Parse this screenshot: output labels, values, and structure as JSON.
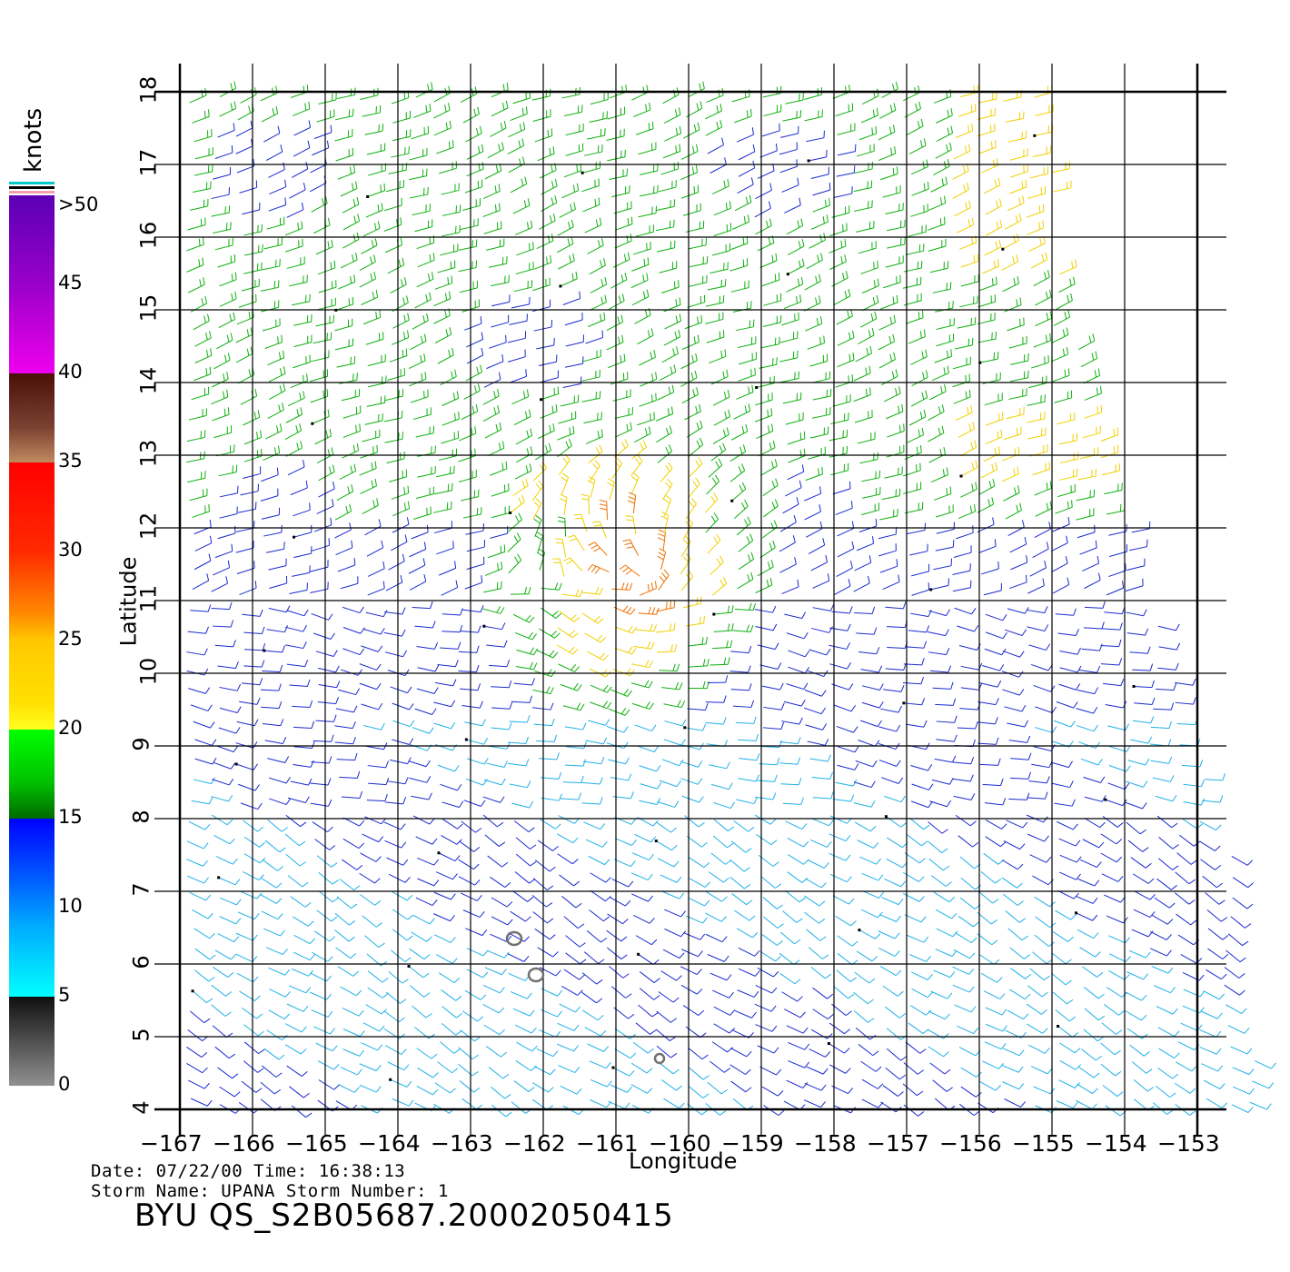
{
  "map": {
    "x_axis": {
      "title": "Longitude",
      "min": -167,
      "max": -153,
      "ticks": [
        -167,
        -166,
        -165,
        -164,
        -163,
        -162,
        -161,
        -160,
        -159,
        -158,
        -157,
        -156,
        -155,
        -154,
        -153
      ],
      "tick_labels": [
        "−167",
        "−166",
        "−165",
        "−164",
        "−163",
        "−162",
        "−161",
        "−160",
        "−159",
        "−158",
        "−157",
        "−156",
        "−155",
        "−154",
        "−153"
      ]
    },
    "y_axis": {
      "title": "Latitude",
      "min": 4,
      "max": 18,
      "ticks": [
        4,
        5,
        6,
        7,
        8,
        9,
        10,
        11,
        12,
        13,
        14,
        15,
        16,
        17,
        18
      ],
      "tick_labels": [
        "4",
        "5",
        "6",
        "7",
        "8",
        "9",
        "10",
        "11",
        "12",
        "13",
        "14",
        "15",
        "16",
        "17",
        "18"
      ]
    },
    "grid": true,
    "swath_outline_lonlat": [
      [
        -167,
        4.0
      ],
      [
        -167,
        18.0
      ],
      [
        -155.1,
        18.0
      ],
      [
        -154.9,
        15.7
      ],
      [
        -154.4,
        13.6
      ],
      [
        -153.6,
        11.0
      ],
      [
        -152.5,
        7.5
      ],
      [
        -152.1,
        4.0
      ]
    ],
    "features": [
      {
        "name": "storm-center-region",
        "lon": -160.7,
        "lat": 11.3,
        "radius_deg": 1.1,
        "speed_knots": 30
      },
      {
        "name": "ring-a",
        "lon": -162.4,
        "lat": 6.35
      },
      {
        "name": "ring-b",
        "lon": -162.1,
        "lat": 5.85
      },
      {
        "name": "ring-c",
        "lon": -160.4,
        "lat": 4.7
      }
    ],
    "colors": {
      "blue": "#1a2ad0",
      "cyan": "#20b0e8",
      "green": "#10b010",
      "yellow": "#f0d000",
      "orange": "#f07000",
      "red": "#c02000",
      "gray": "#404040"
    }
  },
  "colorbar": {
    "title": "knots",
    "labels": [
      ">50",
      "45",
      "40",
      "35",
      "30",
      "25",
      "20",
      "15",
      "10",
      "5",
      "0"
    ],
    "min": 0,
    "max": 50
  },
  "footer": {
    "date_line": "Date: 07/22/00   Time: 16:38:13",
    "storm_line": "Storm Name: UPANA   Storm Number: 1",
    "product_id": "BYU QS_S2B05687.20002050415"
  }
}
